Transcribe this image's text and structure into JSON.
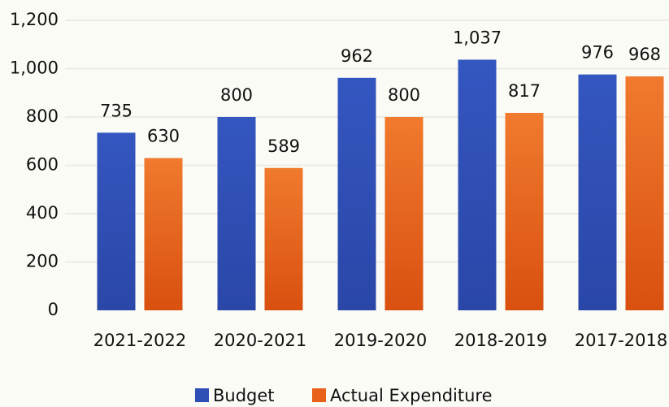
{
  "chart_data": {
    "type": "bar",
    "categories": [
      "2021-2022",
      "2020-2021",
      "2019-2020",
      "2018-2019",
      "2017-2018"
    ],
    "series": [
      {
        "name": "Budget",
        "color": "#2e4fb5",
        "values": [
          735,
          800,
          962,
          1037,
          976
        ],
        "value_labels": [
          "735",
          "800",
          "962",
          "1,037",
          "976"
        ]
      },
      {
        "name": "Actual Expenditure",
        "color": "#e8601a",
        "values": [
          630,
          589,
          800,
          817,
          968
        ],
        "value_labels": [
          "630",
          "589",
          "800",
          "817",
          "968"
        ]
      }
    ],
    "ylim": [
      0,
      1200
    ],
    "yticks": [
      0,
      200,
      400,
      600,
      800,
      {
        "value": 1000,
        "label": "1,000"
      },
      {
        "value": 1200,
        "label": "1,200"
      }
    ],
    "grid": true,
    "legend": "bottom"
  }
}
